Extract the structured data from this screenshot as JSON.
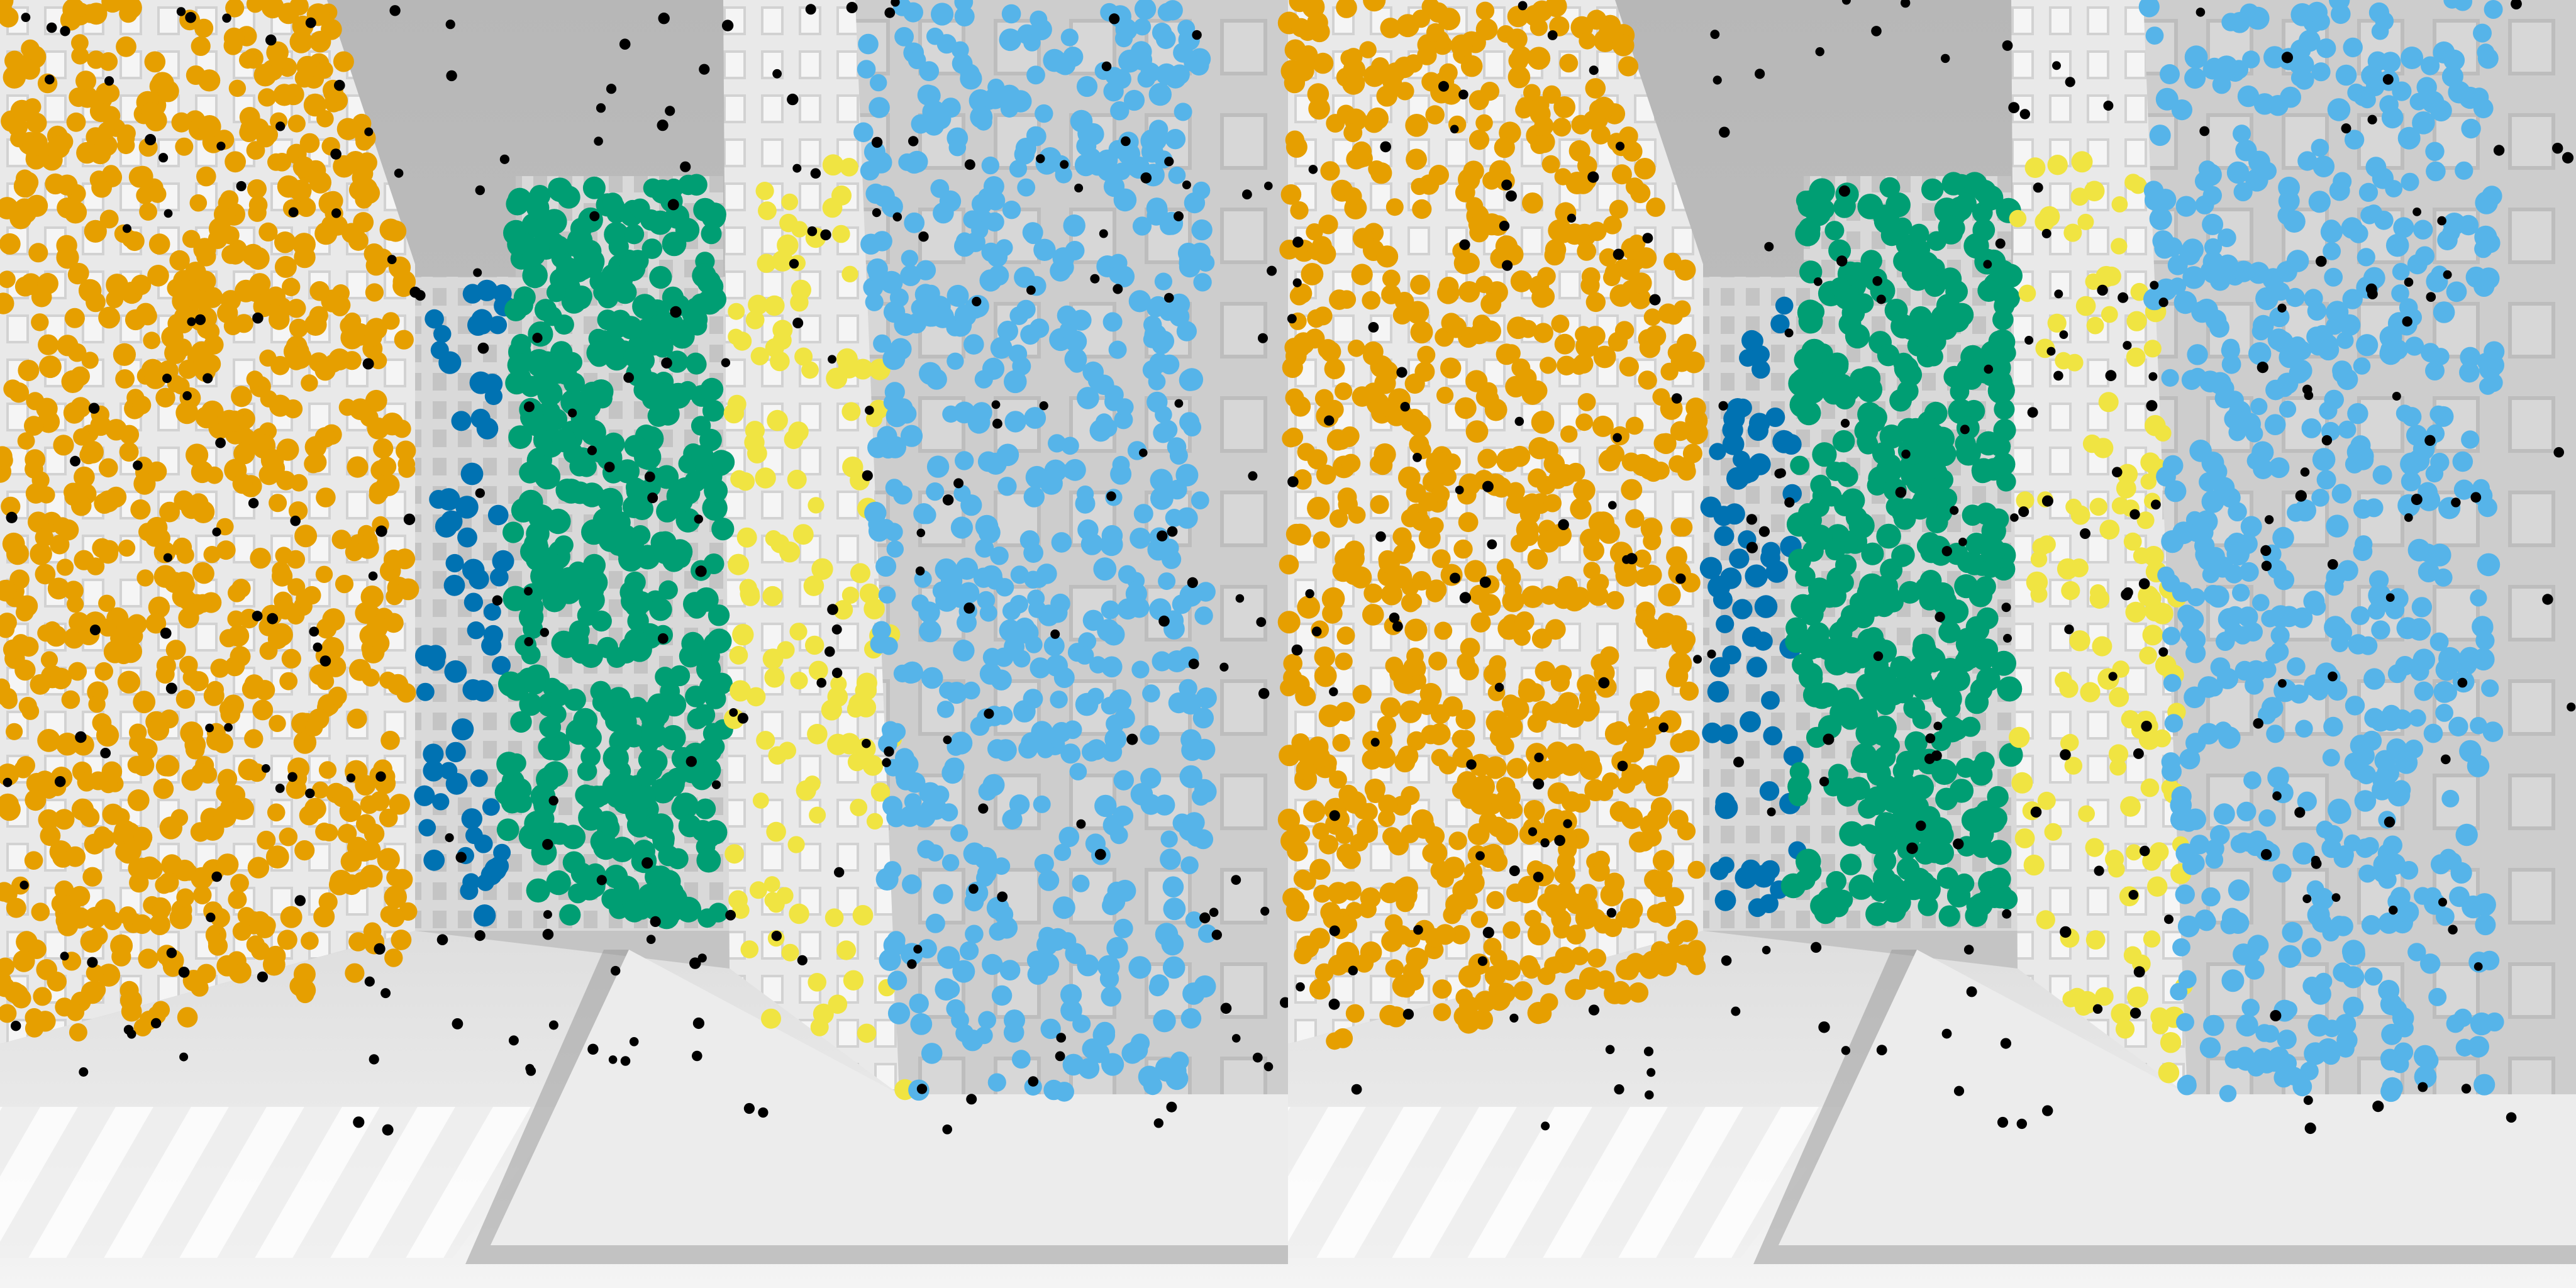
{
  "image": {
    "description_panels": [
      "left-view",
      "right-view"
    ],
    "scene": "grayscale-city-street"
  },
  "cluster_colors": {
    "left_building": "#E69F00",
    "back_left_building": "#0072B2",
    "center_building": "#009E73",
    "right_side_building": "#F0E442",
    "right_front_building": "#56B4E9",
    "outlier_points": "#000000"
  },
  "clusters": [
    {
      "id": "left_building",
      "count": 900
    },
    {
      "id": "back_left_building",
      "count": 70
    },
    {
      "id": "center_building",
      "count": 500
    },
    {
      "id": "right_side_building",
      "count": 140
    },
    {
      "id": "right_front_building",
      "count": 650
    },
    {
      "id": "outlier_points",
      "count": 260
    }
  ]
}
